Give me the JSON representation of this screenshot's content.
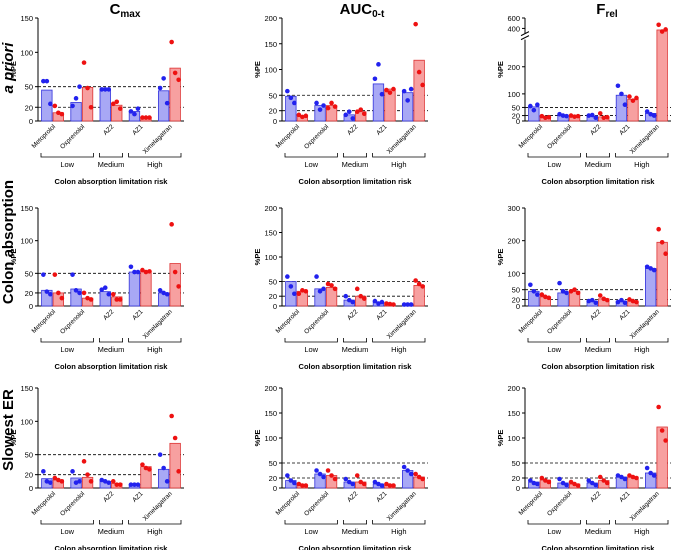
{
  "figure": {
    "columns": [
      {
        "main": "C",
        "sub": "max"
      },
      {
        "main": "AUC",
        "sub": "0-t"
      },
      {
        "main": "F",
        "sub": "rel"
      }
    ],
    "rows": [
      {
        "label": "a priori",
        "italic": true
      },
      {
        "label": "Colon absorption",
        "italic": false
      },
      {
        "label": "Slowest ER",
        "italic": false
      }
    ],
    "drugs": [
      "Metoprolol",
      "Oxprenolol",
      "AZ2",
      "AZ1",
      "Ximelagatran"
    ],
    "risk_groups": [
      {
        "label": "Low",
        "drugs": [
          0,
          1
        ]
      },
      {
        "label": "Medium",
        "drugs": [
          2
        ]
      },
      {
        "label": "High",
        "drugs": [
          3,
          4
        ]
      }
    ],
    "xlabel": "Colon absorption limitation risk",
    "ylabel": "%PE",
    "colors": {
      "blue_bar": "#a8a8f5",
      "blue_edge": "#3333dd",
      "blue_dot": "#2222ee",
      "red_bar": "#f7a0a0",
      "red_edge": "#dd3333",
      "red_dot": "#ee1111"
    },
    "reference_lines": [
      20,
      50
    ]
  },
  "chart_data": [
    {
      "type": "bar",
      "row": 0,
      "col": 0,
      "ylim": [
        0,
        150
      ],
      "yticks": [
        0,
        20,
        50,
        100,
        150
      ],
      "series": [
        {
          "name": "blue",
          "values": [
            45,
            27,
            46,
            14,
            44
          ],
          "points": [
            [
              58,
              58,
              25
            ],
            [
              22,
              33,
              50
            ],
            [
              46,
              46,
              46
            ],
            [
              14,
              10,
              18
            ],
            [
              48,
              62,
              26
            ]
          ]
        },
        {
          "name": "red",
          "values": [
            12,
            49,
            23,
            5,
            77
          ],
          "points": [
            [
              22,
              12,
              10
            ],
            [
              85,
              48,
              20
            ],
            [
              25,
              28,
              18
            ],
            [
              5,
              5,
              5
            ],
            [
              115,
              70,
              60
            ]
          ]
        }
      ]
    },
    {
      "type": "bar",
      "row": 0,
      "col": 1,
      "ylim": [
        0,
        200
      ],
      "yticks": [
        0,
        20,
        50,
        100,
        150,
        200
      ],
      "series": [
        {
          "name": "blue",
          "values": [
            48,
            30,
            12,
            72,
            55
          ],
          "points": [
            [
              58,
              45,
              35
            ],
            [
              35,
              22,
              30
            ],
            [
              12,
              18,
              5
            ],
            [
              82,
              110,
              52
            ],
            [
              58,
              40,
              62
            ]
          ]
        },
        {
          "name": "red",
          "values": [
            10,
            30,
            18,
            62,
            118
          ],
          "points": [
            [
              12,
              8,
              10
            ],
            [
              25,
              35,
              28
            ],
            [
              18,
              22,
              14
            ],
            [
              60,
              55,
              62
            ],
            [
              188,
              95,
              70
            ]
          ]
        }
      ]
    },
    {
      "type": "bar",
      "row": 0,
      "col": 2,
      "ylim": [
        0,
        600
      ],
      "yticks": [
        0,
        20,
        50,
        100,
        200,
        400,
        600
      ],
      "broken_axis": {
        "low_max": 300,
        "high_min": 300
      },
      "series": [
        {
          "name": "blue",
          "values": [
            52,
            22,
            18,
            95,
            28
          ],
          "points": [
            [
              55,
              40,
              60
            ],
            [
              25,
              20,
              18
            ],
            [
              20,
              22,
              12
            ],
            [
              130,
              100,
              60
            ],
            [
              35,
              25,
              20
            ]
          ]
        },
        {
          "name": "red",
          "values": [
            14,
            18,
            15,
            80,
            370
          ],
          "points": [
            [
              18,
              12,
              14
            ],
            [
              20,
              16,
              18
            ],
            [
              28,
              12,
              14
            ],
            [
              90,
              75,
              85
            ],
            [
              470,
              340,
              380
            ]
          ]
        }
      ]
    },
    {
      "type": "bar",
      "row": 1,
      "col": 0,
      "ylim": [
        0,
        150
      ],
      "yticks": [
        0,
        20,
        50,
        100,
        150
      ],
      "series": [
        {
          "name": "blue",
          "values": [
            24,
            26,
            22,
            52,
            20
          ],
          "points": [
            [
              48,
              22,
              18
            ],
            [
              48,
              24,
              20
            ],
            [
              25,
              28,
              18
            ],
            [
              60,
              52,
              52
            ],
            [
              24,
              20,
              18
            ]
          ]
        },
        {
          "name": "red",
          "values": [
            20,
            12,
            14,
            53,
            65
          ],
          "points": [
            [
              48,
              20,
              12
            ],
            [
              20,
              12,
              10
            ],
            [
              18,
              10,
              10
            ],
            [
              55,
              52,
              53
            ],
            [
              125,
              52,
              30
            ]
          ]
        }
      ]
    },
    {
      "type": "bar",
      "row": 1,
      "col": 1,
      "ylim": [
        0,
        200
      ],
      "yticks": [
        0,
        20,
        50,
        100,
        150,
        200
      ],
      "series": [
        {
          "name": "blue",
          "values": [
            50,
            35,
            12,
            8,
            3
          ],
          "points": [
            [
              60,
              40,
              25
            ],
            [
              60,
              30,
              35
            ],
            [
              20,
              12,
              8
            ],
            [
              10,
              5,
              8
            ],
            [
              3,
              3,
              3
            ]
          ]
        },
        {
          "name": "red",
          "values": [
            30,
            38,
            20,
            4,
            42
          ],
          "points": [
            [
              25,
              32,
              30
            ],
            [
              45,
              42,
              35
            ],
            [
              35,
              20,
              15
            ],
            [
              5,
              4,
              3
            ],
            [
              52,
              45,
              40
            ]
          ]
        }
      ]
    },
    {
      "type": "bar",
      "row": 1,
      "col": 2,
      "ylim": [
        0,
        300
      ],
      "yticks": [
        0,
        20,
        50,
        100,
        200,
        300
      ],
      "series": [
        {
          "name": "blue",
          "values": [
            45,
            40,
            15,
            15,
            115
          ],
          "points": [
            [
              65,
              45,
              35
            ],
            [
              70,
              45,
              40
            ],
            [
              15,
              18,
              10
            ],
            [
              12,
              18,
              10
            ],
            [
              120,
              115,
              110
            ]
          ]
        },
        {
          "name": "red",
          "values": [
            28,
            45,
            22,
            15,
            195
          ],
          "points": [
            [
              35,
              28,
              25
            ],
            [
              45,
              50,
              40
            ],
            [
              32,
              22,
              18
            ],
            [
              20,
              15,
              12
            ],
            [
              235,
              195,
              160
            ]
          ]
        }
      ]
    },
    {
      "type": "bar",
      "row": 2,
      "col": 0,
      "ylim": [
        0,
        150
      ],
      "yticks": [
        0,
        20,
        50,
        100,
        150
      ],
      "series": [
        {
          "name": "blue",
          "values": [
            14,
            15,
            10,
            5,
            28
          ],
          "points": [
            [
              25,
              10,
              8
            ],
            [
              25,
              8,
              10
            ],
            [
              12,
              10,
              8
            ],
            [
              5,
              5,
              5
            ],
            [
              50,
              30,
              10
            ]
          ]
        },
        {
          "name": "red",
          "values": [
            12,
            16,
            7,
            32,
            67
          ],
          "points": [
            [
              15,
              12,
              10
            ],
            [
              40,
              20,
              10
            ],
            [
              10,
              5,
              5
            ],
            [
              35,
              30,
              28
            ],
            [
              108,
              75,
              25
            ]
          ]
        }
      ]
    },
    {
      "type": "bar",
      "row": 2,
      "col": 1,
      "ylim": [
        0,
        200
      ],
      "yticks": [
        0,
        20,
        50,
        100,
        150,
        200
      ],
      "series": [
        {
          "name": "blue",
          "values": [
            15,
            28,
            12,
            8,
            35
          ],
          "points": [
            [
              25,
              15,
              10
            ],
            [
              35,
              28,
              22
            ],
            [
              18,
              12,
              8
            ],
            [
              12,
              8,
              5
            ],
            [
              42,
              35,
              28
            ]
          ]
        },
        {
          "name": "red",
          "values": [
            6,
            25,
            12,
            6,
            22
          ],
          "points": [
            [
              8,
              5,
              5
            ],
            [
              35,
              25,
              18
            ],
            [
              25,
              12,
              8
            ],
            [
              8,
              5,
              5
            ],
            [
              28,
              22,
              18
            ]
          ]
        }
      ]
    },
    {
      "type": "bar",
      "row": 2,
      "col": 2,
      "ylim": [
        0,
        200
      ],
      "yticks": [
        0,
        20,
        50,
        100,
        150,
        200
      ],
      "series": [
        {
          "name": "blue",
          "values": [
            12,
            10,
            10,
            22,
            30
          ],
          "points": [
            [
              15,
              10,
              8
            ],
            [
              18,
              10,
              6
            ],
            [
              15,
              10,
              6
            ],
            [
              25,
              22,
              18
            ],
            [
              40,
              30,
              25
            ]
          ]
        },
        {
          "name": "red",
          "values": [
            16,
            8,
            15,
            22,
            122
          ],
          "points": [
            [
              20,
              15,
              12
            ],
            [
              12,
              8,
              5
            ],
            [
              22,
              15,
              10
            ],
            [
              25,
              22,
              20
            ],
            [
              162,
              115,
              95
            ]
          ]
        }
      ]
    }
  ]
}
